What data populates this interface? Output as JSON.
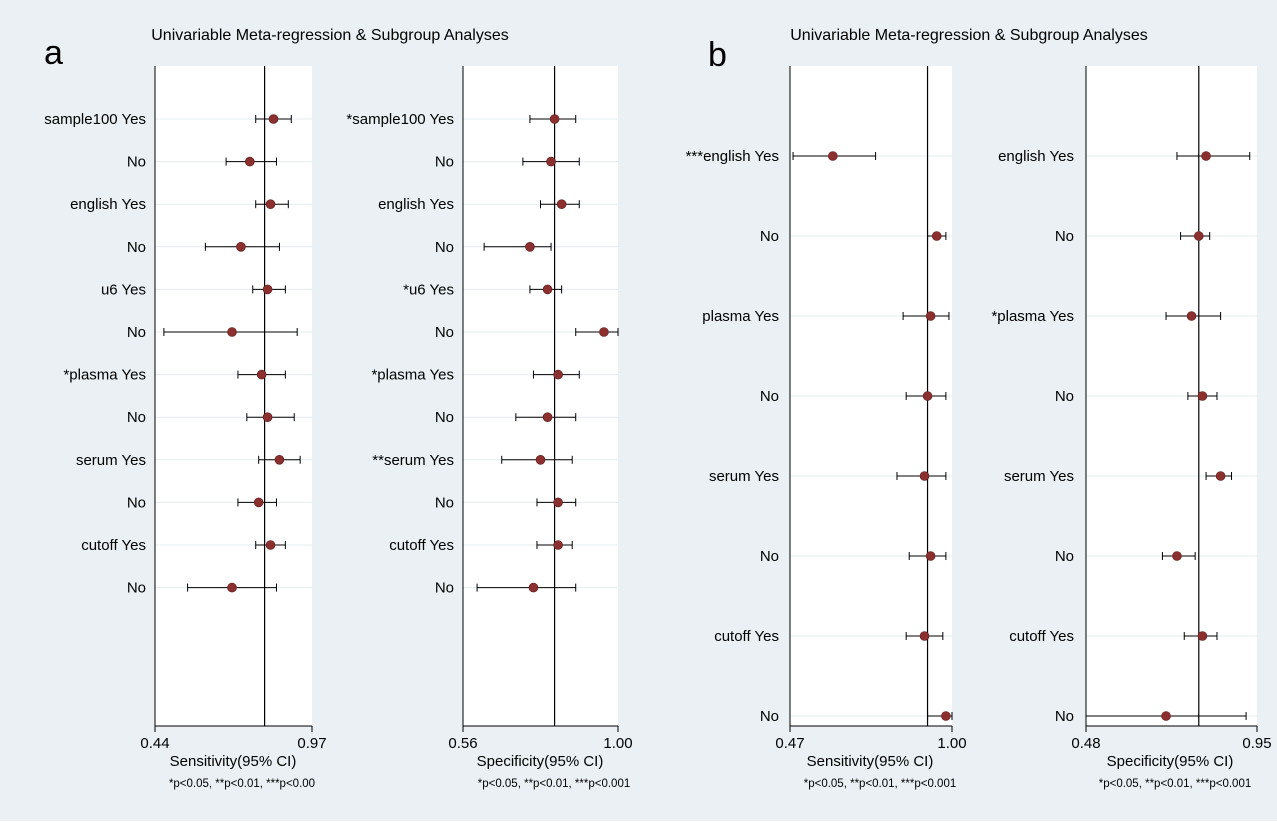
{
  "figure": {
    "panel_a": {
      "letter": "a",
      "title": "Univariable Meta-regression & Subgroup Analyses"
    },
    "panel_b": {
      "letter": "b",
      "title": "Univariable Meta-regression & Subgroup Analyses"
    }
  },
  "colors": {
    "outer_background": "#eaf0f3",
    "plot_background": "#ffffff",
    "gridline": "#e6ecef",
    "marker": "#8b2f2f",
    "line": "#000000"
  },
  "chart_data": [
    {
      "type": "forest",
      "panel": "a",
      "xlabel": "Sensitivity(95% CI)",
      "footnote": "*p<0.05, **p<0.01, ***p<0.00",
      "xlim": [
        0.44,
        0.97
      ],
      "xticks": [
        "0.44",
        "0.97"
      ],
      "reference_line": 0.81,
      "grid": true,
      "rows": [
        {
          "label": "sample100 Yes",
          "est": 0.84,
          "lo": 0.78,
          "hi": 0.9
        },
        {
          "label": "No",
          "est": 0.76,
          "lo": 0.68,
          "hi": 0.85
        },
        {
          "label": "english Yes",
          "est": 0.83,
          "lo": 0.78,
          "hi": 0.89
        },
        {
          "label": "No",
          "est": 0.73,
          "lo": 0.61,
          "hi": 0.86
        },
        {
          "label": "u6 Yes",
          "est": 0.82,
          "lo": 0.77,
          "hi": 0.88
        },
        {
          "label": "No",
          "est": 0.7,
          "lo": 0.47,
          "hi": 0.92
        },
        {
          "label": "*plasma Yes",
          "est": 0.8,
          "lo": 0.72,
          "hi": 0.88
        },
        {
          "label": "No",
          "est": 0.82,
          "lo": 0.75,
          "hi": 0.91
        },
        {
          "label": "serum Yes",
          "est": 0.86,
          "lo": 0.79,
          "hi": 0.93
        },
        {
          "label": "No",
          "est": 0.79,
          "lo": 0.72,
          "hi": 0.85
        },
        {
          "label": "cutoff Yes",
          "est": 0.83,
          "lo": 0.78,
          "hi": 0.88
        },
        {
          "label": "No",
          "est": 0.7,
          "lo": 0.55,
          "hi": 0.85
        }
      ]
    },
    {
      "type": "forest",
      "panel": "a",
      "xlabel": "Specificity(95% CI)",
      "footnote": "*p<0.05, **p<0.01, ***p<0.001",
      "xlim": [
        0.56,
        1.0
      ],
      "xticks": [
        "0.56",
        "1.00"
      ],
      "reference_line": 0.82,
      "grid": true,
      "rows": [
        {
          "label": "*sample100 Yes",
          "est": 0.82,
          "lo": 0.75,
          "hi": 0.88
        },
        {
          "label": "No",
          "est": 0.81,
          "lo": 0.73,
          "hi": 0.89
        },
        {
          "label": "english Yes",
          "est": 0.84,
          "lo": 0.78,
          "hi": 0.89
        },
        {
          "label": "No",
          "est": 0.75,
          "lo": 0.62,
          "hi": 0.81
        },
        {
          "label": "*u6 Yes",
          "est": 0.8,
          "lo": 0.75,
          "hi": 0.84
        },
        {
          "label": "No",
          "est": 0.96,
          "lo": 0.88,
          "hi": 1.0
        },
        {
          "label": "*plasma Yes",
          "est": 0.83,
          "lo": 0.76,
          "hi": 0.89
        },
        {
          "label": "No",
          "est": 0.8,
          "lo": 0.71,
          "hi": 0.88
        },
        {
          "label": "**serum Yes",
          "est": 0.78,
          "lo": 0.67,
          "hi": 0.87
        },
        {
          "label": "No",
          "est": 0.83,
          "lo": 0.77,
          "hi": 0.88
        },
        {
          "label": "cutoff Yes",
          "est": 0.83,
          "lo": 0.77,
          "hi": 0.87
        },
        {
          "label": "No",
          "est": 0.76,
          "lo": 0.6,
          "hi": 0.88
        }
      ]
    },
    {
      "type": "forest",
      "panel": "b",
      "xlabel": "Sensitivity(95% CI)",
      "footnote": "*p<0.05, **p<0.01, ***p<0.001",
      "xlim": [
        0.47,
        1.0
      ],
      "xticks": [
        "0.47",
        "1.00"
      ],
      "reference_line": 0.92,
      "grid": true,
      "rows": [
        {
          "label": "***english Yes",
          "est": 0.61,
          "lo": 0.48,
          "hi": 0.75
        },
        {
          "label": "No",
          "est": 0.95,
          "lo": 0.92,
          "hi": 0.98
        },
        {
          "label": "plasma Yes",
          "est": 0.93,
          "lo": 0.84,
          "hi": 0.99
        },
        {
          "label": "No",
          "est": 0.92,
          "lo": 0.85,
          "hi": 0.98
        },
        {
          "label": "serum Yes",
          "est": 0.91,
          "lo": 0.82,
          "hi": 0.98
        },
        {
          "label": "No",
          "est": 0.93,
          "lo": 0.86,
          "hi": 0.98
        },
        {
          "label": "cutoff Yes",
          "est": 0.91,
          "lo": 0.85,
          "hi": 0.97
        },
        {
          "label": "No",
          "est": 0.98,
          "lo": 0.92,
          "hi": 1.0
        }
      ]
    },
    {
      "type": "forest",
      "panel": "b",
      "xlabel": "Specificity(95% CI)",
      "footnote": "*p<0.05, **p<0.01, ***p<0.001",
      "xlim": [
        0.48,
        0.95
      ],
      "xticks": [
        "0.48",
        "0.95"
      ],
      "reference_line": 0.79,
      "grid": true,
      "rows": [
        {
          "label": "english Yes",
          "est": 0.81,
          "lo": 0.73,
          "hi": 0.93
        },
        {
          "label": "No",
          "est": 0.79,
          "lo": 0.74,
          "hi": 0.82
        },
        {
          "label": "*plasma Yes",
          "est": 0.77,
          "lo": 0.7,
          "hi": 0.85
        },
        {
          "label": "No",
          "est": 0.8,
          "lo": 0.76,
          "hi": 0.84
        },
        {
          "label": "serum Yes",
          "est": 0.85,
          "lo": 0.81,
          "hi": 0.88
        },
        {
          "label": "No",
          "est": 0.73,
          "lo": 0.69,
          "hi": 0.78
        },
        {
          "label": "cutoff Yes",
          "est": 0.8,
          "lo": 0.75,
          "hi": 0.84
        },
        {
          "label": "No",
          "est": 0.7,
          "lo": 0.48,
          "hi": 0.92
        }
      ]
    }
  ]
}
